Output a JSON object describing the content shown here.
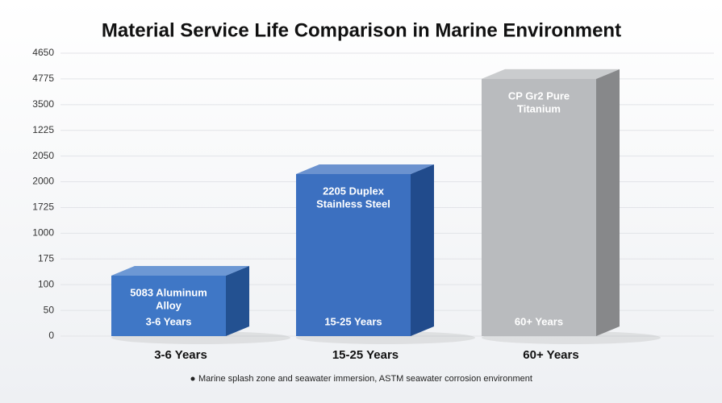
{
  "chart_data": {
    "type": "bar3d",
    "title": "Material Service Life Comparison in Marine Environment",
    "categories": [
      "3-6 Years",
      "15-25 Years",
      "60+ Years"
    ],
    "bar_names": [
      [
        "5083 Aluminum",
        "Alloy"
      ],
      [
        "2205 Duplex",
        "Stainless Steel"
      ],
      [
        "CP Gr2 Pure",
        "Titanium"
      ]
    ],
    "values": [
      2.35,
      6.3,
      10.0
    ],
    "value_labels": [
      "3-6 Years",
      "15-25 Years",
      "60+ Years"
    ],
    "colors": [
      "#2f6cc2",
      "#2c64bb",
      "#b4b6b9"
    ],
    "ylim": [
      0,
      11
    ],
    "yticks": [
      {
        "value": 0,
        "label": "0"
      },
      {
        "value": 1,
        "label": "50"
      },
      {
        "value": 2,
        "label": "100"
      },
      {
        "value": 3,
        "label": "175"
      },
      {
        "value": 4,
        "label": "1000"
      },
      {
        "value": 5,
        "label": "1725"
      },
      {
        "value": 6,
        "label": "2000"
      },
      {
        "value": 7,
        "label": "2050"
      },
      {
        "value": 8,
        "label": "1225"
      },
      {
        "value": 9,
        "label": "3500"
      },
      {
        "value": 10,
        "label": "4775"
      },
      {
        "value": 11,
        "label": "4650"
      }
    ],
    "grid": true,
    "footnote": "Marine splash zone and seawater immersion, ASTM seawater corrosion environment"
  }
}
